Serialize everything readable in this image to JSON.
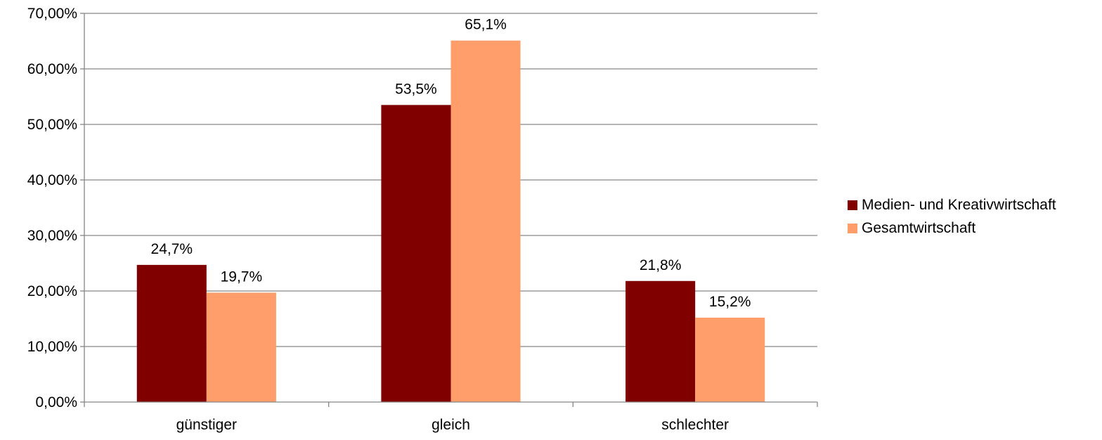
{
  "chart_data": {
    "type": "bar",
    "categories": [
      "günstiger",
      "gleich",
      "schlechter"
    ],
    "series": [
      {
        "name": "Medien- und Kreativwirtschaft",
        "color": "#800000",
        "values": [
          24.7,
          53.5,
          21.8
        ],
        "labels": [
          "24,7%",
          "53,5%",
          "21,8%"
        ]
      },
      {
        "name": "Gesamtwirtschaft",
        "color": "#FF9E6B",
        "values": [
          19.7,
          65.1,
          15.2
        ],
        "labels": [
          "19,7%",
          "65,1%",
          "15,2%"
        ]
      }
    ],
    "yticks": [
      0,
      10,
      20,
      30,
      40,
      50,
      60,
      70
    ],
    "ytick_labels": [
      "0,00%",
      "10,00%",
      "20,00%",
      "30,00%",
      "40,00%",
      "50,00%",
      "60,00%",
      "70,00%"
    ],
    "ylim": [
      0,
      70
    ],
    "grid": true,
    "legend_position": "right",
    "title": "",
    "xlabel": "",
    "ylabel": ""
  }
}
